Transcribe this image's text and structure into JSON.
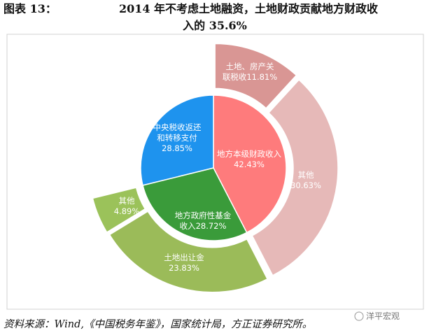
{
  "header": {
    "label": "图表 13：",
    "title": "2014 年不考虑土地融资，土地财政贡献地方财政收入的 35.6%"
  },
  "chart_data": {
    "type": "nested-pie",
    "rings": [
      {
        "categories": [
          "地方本级财政收入",
          "地方政府性基金收入",
          "中央税收返还和转移支付"
        ],
        "values": [
          42.43,
          28.72,
          28.85
        ],
        "value_labels": [
          "42.43%",
          "28.72%",
          "28.85%"
        ],
        "colors": [
          "#fe7b7c",
          "#3a9b3a",
          "#1e93ee"
        ]
      },
      {
        "categories": [
          "土地、房产关联税收",
          "其他",
          "土地出让金",
          "其他"
        ],
        "values": [
          11.81,
          30.63,
          23.83,
          4.89
        ],
        "value_labels": [
          "11.81%",
          "30.63%",
          "23.83%",
          "4.89%"
        ],
        "colors": [
          "#d99694",
          "#e6b9b8",
          "#9bbb59",
          "#9bc25a"
        ]
      }
    ]
  },
  "footer": {
    "source": "资料来源：Wind,《中国税务年鉴》，国家统计局，方正证券研究所。",
    "watermark": "洋平宏观"
  }
}
